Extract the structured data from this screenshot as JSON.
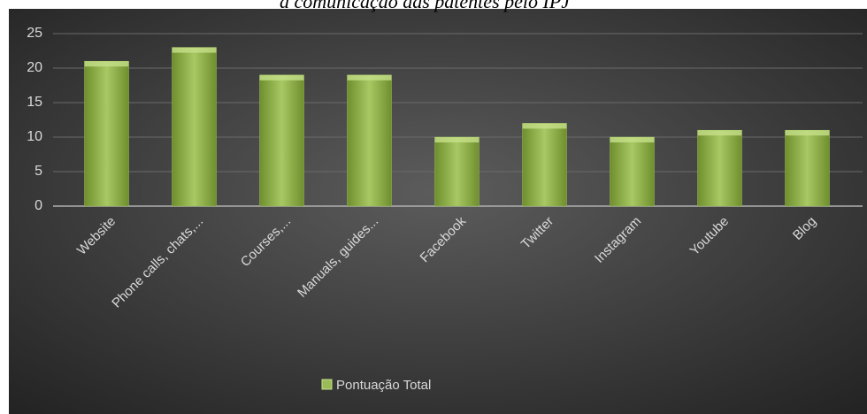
{
  "chart_data": {
    "type": "bar",
    "title": "a comunicação das patentes pelo IPJ",
    "categories": [
      "Website",
      "Phone calls, chats,...",
      "Courses,...",
      "Manuals, guides...",
      "Facebook",
      "Twitter",
      "Instagram",
      "Youtube",
      "Blog"
    ],
    "series": [
      {
        "name": "Pontuação Total",
        "color": "#9bbb59",
        "values": [
          21,
          23,
          19,
          19,
          10,
          12,
          10,
          11,
          11
        ]
      }
    ],
    "ylim": [
      0,
      25
    ],
    "yticks": [
      0,
      5,
      10,
      15,
      20,
      25
    ],
    "grid": true,
    "legend": "bottom"
  }
}
